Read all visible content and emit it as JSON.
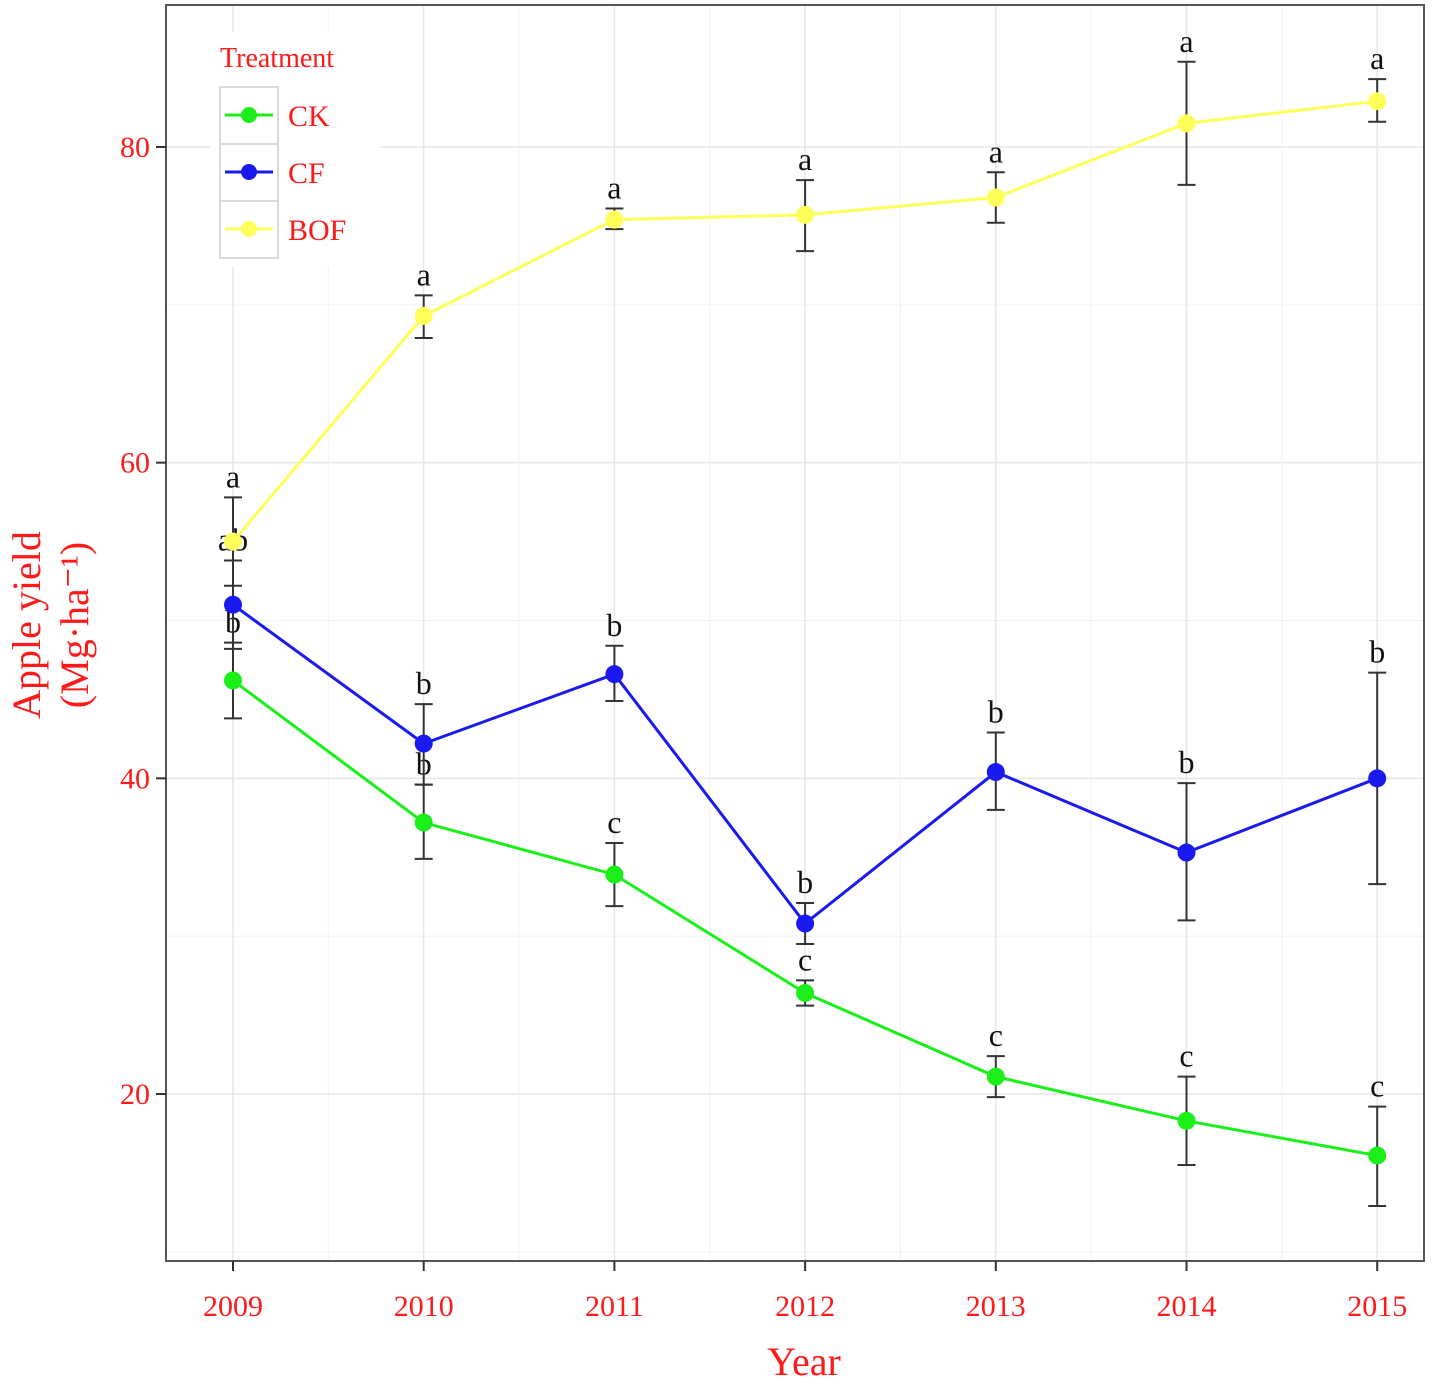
{
  "chart_data": {
    "type": "line",
    "xlabel": "Year",
    "ylabel_line1": "Apple yield",
    "ylabel_line2": "(Mg·ha⁻¹)",
    "x": [
      "2009",
      "2010",
      "2011",
      "2012",
      "2013",
      "2014",
      "2015"
    ],
    "ylim": [
      9,
      89
    ],
    "y_ticks": [
      20,
      40,
      60,
      80
    ],
    "grid": true,
    "legend": {
      "title": "Treatment",
      "position": "top-left"
    },
    "series": [
      {
        "name": "CK",
        "color": "#1aef1a",
        "values": [
          46.2,
          37.2,
          33.9,
          26.4,
          21.1,
          18.3,
          16.1
        ],
        "err_low": [
          43.8,
          34.9,
          31.9,
          25.6,
          19.8,
          15.5,
          12.9
        ],
        "err_high": [
          48.6,
          39.6,
          35.9,
          27.2,
          22.4,
          21.1,
          19.2
        ],
        "sig": [
          "b",
          "b",
          "c",
          "c",
          "c",
          "c",
          "c"
        ]
      },
      {
        "name": "CF",
        "color": "#1a1af0",
        "values": [
          51.0,
          42.2,
          46.6,
          30.8,
          40.4,
          35.3,
          40.0
        ],
        "err_low": [
          48.2,
          39.6,
          44.9,
          29.5,
          38.0,
          31.0,
          33.3
        ],
        "err_high": [
          53.8,
          44.7,
          48.4,
          32.1,
          42.9,
          39.7,
          46.7
        ],
        "sig": [
          "ab",
          "b",
          "b",
          "b",
          "b",
          "b",
          "b"
        ]
      },
      {
        "name": "BOF",
        "color": "#ffff59",
        "values": [
          55.0,
          69.3,
          75.4,
          75.7,
          76.8,
          81.5,
          82.9
        ],
        "err_low": [
          52.2,
          67.9,
          74.8,
          73.4,
          75.2,
          77.6,
          81.6
        ],
        "err_high": [
          57.8,
          70.6,
          76.1,
          77.9,
          78.4,
          85.4,
          84.3
        ],
        "sig": [
          "a",
          "a",
          "a",
          "a",
          "a",
          "a",
          "a"
        ]
      }
    ]
  }
}
